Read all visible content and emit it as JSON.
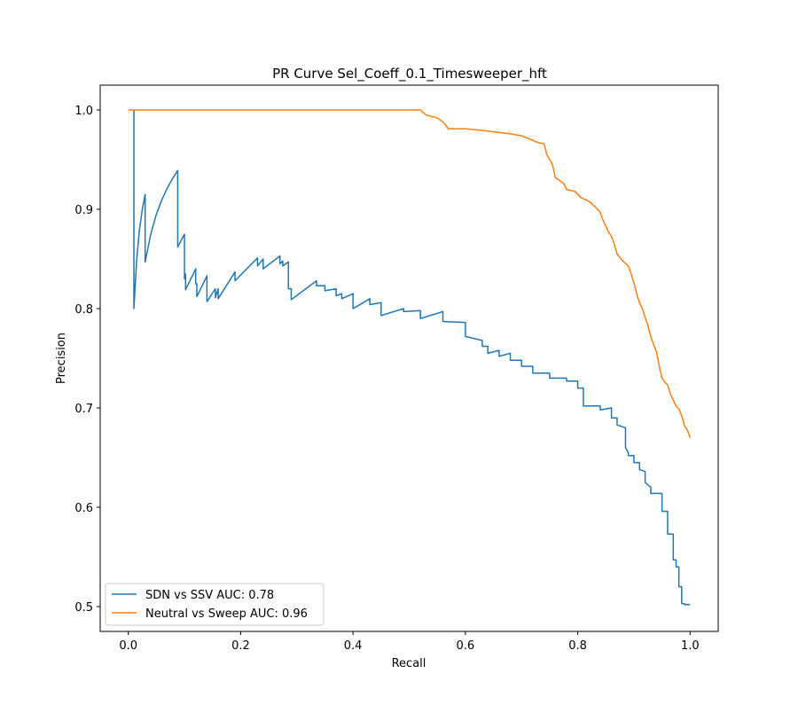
{
  "chart_data": {
    "type": "line",
    "title": "PR Curve Sel_Coeff_0.1_Timesweeper_hft",
    "xlabel": "Recall",
    "ylabel": "Precision",
    "xlim": [
      -0.05,
      1.05
    ],
    "ylim": [
      0.475,
      1.025
    ],
    "xticks": [
      0.0,
      0.2,
      0.4,
      0.6,
      0.8,
      1.0
    ],
    "xtick_labels": [
      "0.0",
      "0.2",
      "0.4",
      "0.6",
      "0.8",
      "1.0"
    ],
    "yticks": [
      0.5,
      0.6,
      0.7,
      0.8,
      0.9,
      1.0
    ],
    "ytick_labels": [
      "0.5",
      "0.6",
      "0.7",
      "0.8",
      "0.9",
      "1.0"
    ],
    "grid": false,
    "legend_position": "lower-left",
    "series": [
      {
        "name": "SDN vs SSV AUC: 0.78",
        "color": "#1f77b4",
        "points": [
          [
            0.01,
            1.0
          ],
          [
            0.01,
            0.8
          ],
          [
            0.015,
            0.85
          ],
          [
            0.02,
            0.88
          ],
          [
            0.025,
            0.9
          ],
          [
            0.03,
            0.915
          ],
          [
            0.03,
            0.847
          ],
          [
            0.04,
            0.875
          ],
          [
            0.05,
            0.895
          ],
          [
            0.06,
            0.91
          ],
          [
            0.07,
            0.922
          ],
          [
            0.08,
            0.932
          ],
          [
            0.088,
            0.939
          ],
          [
            0.088,
            0.862
          ],
          [
            0.1,
            0.875
          ],
          [
            0.1,
            0.83
          ],
          [
            0.102,
            0.835
          ],
          [
            0.102,
            0.819
          ],
          [
            0.12,
            0.84
          ],
          [
            0.12,
            0.825
          ],
          [
            0.122,
            0.825
          ],
          [
            0.122,
            0.812
          ],
          [
            0.14,
            0.833
          ],
          [
            0.14,
            0.807
          ],
          [
            0.155,
            0.82
          ],
          [
            0.155,
            0.811
          ],
          [
            0.16,
            0.82
          ],
          [
            0.16,
            0.81
          ],
          [
            0.19,
            0.837
          ],
          [
            0.19,
            0.828
          ],
          [
            0.23,
            0.851
          ],
          [
            0.23,
            0.843
          ],
          [
            0.24,
            0.85
          ],
          [
            0.24,
            0.84
          ],
          [
            0.27,
            0.853
          ],
          [
            0.27,
            0.845
          ],
          [
            0.275,
            0.848
          ],
          [
            0.275,
            0.843
          ],
          [
            0.285,
            0.847
          ],
          [
            0.285,
            0.82
          ],
          [
            0.29,
            0.82
          ],
          [
            0.29,
            0.809
          ],
          [
            0.335,
            0.828
          ],
          [
            0.335,
            0.823
          ],
          [
            0.35,
            0.823
          ],
          [
            0.35,
            0.818
          ],
          [
            0.37,
            0.82
          ],
          [
            0.37,
            0.813
          ],
          [
            0.38,
            0.815
          ],
          [
            0.38,
            0.81
          ],
          [
            0.4,
            0.815
          ],
          [
            0.4,
            0.8
          ],
          [
            0.43,
            0.81
          ],
          [
            0.43,
            0.804
          ],
          [
            0.45,
            0.806
          ],
          [
            0.45,
            0.793
          ],
          [
            0.49,
            0.8
          ],
          [
            0.49,
            0.797
          ],
          [
            0.52,
            0.798
          ],
          [
            0.52,
            0.79
          ],
          [
            0.56,
            0.797
          ],
          [
            0.56,
            0.787
          ],
          [
            0.6,
            0.786
          ],
          [
            0.6,
            0.772
          ],
          [
            0.63,
            0.768
          ],
          [
            0.63,
            0.762
          ],
          [
            0.64,
            0.762
          ],
          [
            0.64,
            0.755
          ],
          [
            0.66,
            0.758
          ],
          [
            0.66,
            0.752
          ],
          [
            0.68,
            0.755
          ],
          [
            0.68,
            0.748
          ],
          [
            0.7,
            0.748
          ],
          [
            0.7,
            0.742
          ],
          [
            0.72,
            0.742
          ],
          [
            0.72,
            0.735
          ],
          [
            0.75,
            0.735
          ],
          [
            0.75,
            0.73
          ],
          [
            0.78,
            0.73
          ],
          [
            0.78,
            0.727
          ],
          [
            0.8,
            0.727
          ],
          [
            0.8,
            0.72
          ],
          [
            0.81,
            0.72
          ],
          [
            0.81,
            0.702
          ],
          [
            0.84,
            0.702
          ],
          [
            0.84,
            0.698
          ],
          [
            0.86,
            0.7
          ],
          [
            0.86,
            0.69
          ],
          [
            0.87,
            0.69
          ],
          [
            0.87,
            0.683
          ],
          [
            0.885,
            0.68
          ],
          [
            0.885,
            0.66
          ],
          [
            0.89,
            0.655
          ],
          [
            0.89,
            0.652
          ],
          [
            0.9,
            0.652
          ],
          [
            0.9,
            0.645
          ],
          [
            0.91,
            0.645
          ],
          [
            0.91,
            0.638
          ],
          [
            0.92,
            0.636
          ],
          [
            0.92,
            0.625
          ],
          [
            0.93,
            0.62
          ],
          [
            0.93,
            0.614
          ],
          [
            0.95,
            0.614
          ],
          [
            0.95,
            0.596
          ],
          [
            0.96,
            0.596
          ],
          [
            0.96,
            0.573
          ],
          [
            0.97,
            0.573
          ],
          [
            0.97,
            0.547
          ],
          [
            0.975,
            0.547
          ],
          [
            0.975,
            0.54
          ],
          [
            0.98,
            0.54
          ],
          [
            0.98,
            0.52
          ],
          [
            0.985,
            0.52
          ],
          [
            0.985,
            0.503
          ],
          [
            0.99,
            0.503
          ],
          [
            0.99,
            0.502
          ],
          [
            1.0,
            0.502
          ]
        ]
      },
      {
        "name": "Neutral vs Sweep AUC: 0.96",
        "color": "#ff7f0e",
        "points": [
          [
            0.0,
            1.0
          ],
          [
            0.52,
            1.0
          ],
          [
            0.53,
            0.995
          ],
          [
            0.55,
            0.992
          ],
          [
            0.56,
            0.988
          ],
          [
            0.57,
            0.981
          ],
          [
            0.6,
            0.981
          ],
          [
            0.62,
            0.98
          ],
          [
            0.65,
            0.978
          ],
          [
            0.68,
            0.976
          ],
          [
            0.7,
            0.974
          ],
          [
            0.73,
            0.967
          ],
          [
            0.74,
            0.966
          ],
          [
            0.745,
            0.955
          ],
          [
            0.755,
            0.945
          ],
          [
            0.76,
            0.932
          ],
          [
            0.775,
            0.926
          ],
          [
            0.78,
            0.92
          ],
          [
            0.795,
            0.918
          ],
          [
            0.805,
            0.912
          ],
          [
            0.82,
            0.908
          ],
          [
            0.83,
            0.903
          ],
          [
            0.84,
            0.897
          ],
          [
            0.845,
            0.889
          ],
          [
            0.855,
            0.877
          ],
          [
            0.86,
            0.873
          ],
          [
            0.865,
            0.865
          ],
          [
            0.87,
            0.855
          ],
          [
            0.88,
            0.848
          ],
          [
            0.89,
            0.843
          ],
          [
            0.895,
            0.835
          ],
          [
            0.9,
            0.826
          ],
          [
            0.905,
            0.815
          ],
          [
            0.91,
            0.806
          ],
          [
            0.915,
            0.8
          ],
          [
            0.92,
            0.791
          ],
          [
            0.925,
            0.783
          ],
          [
            0.93,
            0.772
          ],
          [
            0.935,
            0.764
          ],
          [
            0.94,
            0.757
          ],
          [
            0.945,
            0.742
          ],
          [
            0.95,
            0.73
          ],
          [
            0.955,
            0.726
          ],
          [
            0.96,
            0.723
          ],
          [
            0.965,
            0.714
          ],
          [
            0.97,
            0.708
          ],
          [
            0.975,
            0.702
          ],
          [
            0.98,
            0.699
          ],
          [
            0.985,
            0.692
          ],
          [
            0.99,
            0.682
          ],
          [
            0.995,
            0.678
          ],
          [
            1.0,
            0.67
          ]
        ]
      }
    ]
  }
}
